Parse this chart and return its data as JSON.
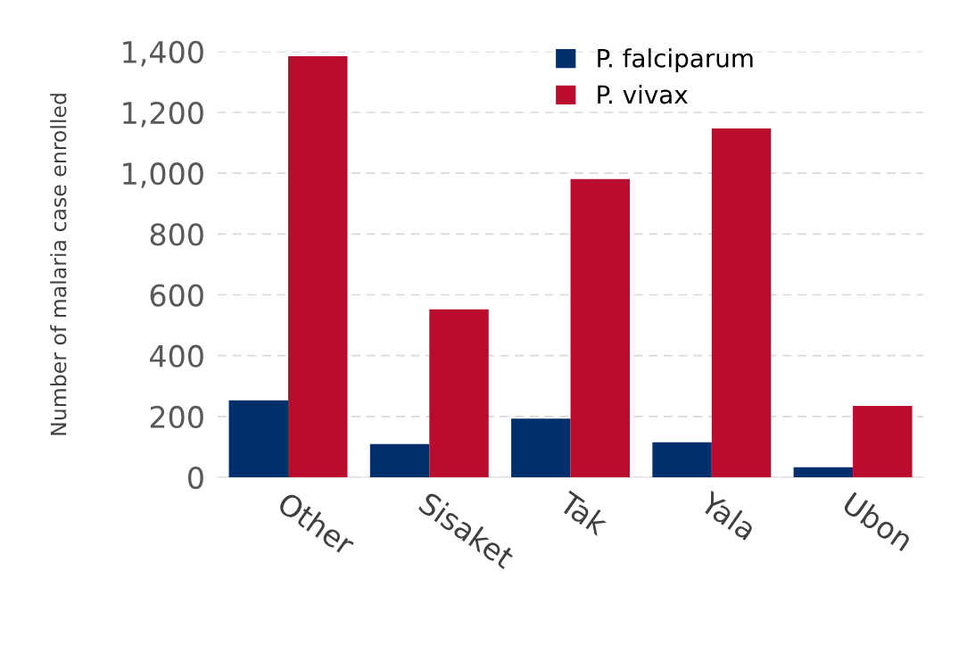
{
  "chart_data": {
    "type": "bar",
    "ylabel": "Number of malaria case enrolled",
    "categories": [
      "Other",
      "Sisaket",
      "Tak",
      "Yala",
      "Ubon"
    ],
    "series": [
      {
        "name": "P. falciparum",
        "color": "#002f6c",
        "values": [
          253,
          109,
          193,
          115,
          33
        ]
      },
      {
        "name": "P. vivax",
        "color": "#ba0c2f",
        "values": [
          1385,
          552,
          981,
          1147,
          235
        ]
      }
    ],
    "ylim": [
      0,
      1400
    ],
    "yticks": [
      0,
      {
        "value": 200,
        "label": "200"
      },
      {
        "value": 400,
        "label": "400"
      },
      {
        "value": 600,
        "label": "600"
      },
      {
        "value": 800,
        "label": "800"
      },
      {
        "value": 1000,
        "label": "1,000"
      },
      {
        "value": 1200,
        "label": "1,200"
      },
      {
        "value": 1400,
        "label": "1,400"
      }
    ],
    "grid": "y",
    "legend": "top"
  }
}
